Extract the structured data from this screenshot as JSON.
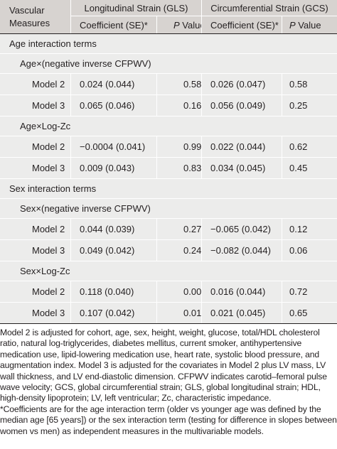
{
  "header": {
    "measures_label_line1": "Vascular",
    "measures_label_line2": "Measures",
    "gls_label": "Longitudinal Strain (GLS)",
    "gcs_label": "Circumferential Strain (GCS)",
    "coef_label": "Coefficient (SE)*",
    "p_label_italic": "P",
    "p_label_rest": " Value"
  },
  "sections": [
    {
      "title": "Age interaction terms",
      "groups": [
        {
          "label": "Age×(negative inverse CFPWV)",
          "rows": [
            {
              "model": "Model 2",
              "gls_coef": "0.024 (0.044)",
              "gls_p": "0.58",
              "gcs_coef": "0.026 (0.047)",
              "gcs_p": "0.58"
            },
            {
              "model": "Model 3",
              "gls_coef": "0.065 (0.046)",
              "gls_p": "0.16",
              "gcs_coef": "0.056 (0.049)",
              "gcs_p": "0.25"
            }
          ]
        },
        {
          "label": "Age×Log-Zc",
          "rows": [
            {
              "model": "Model 2",
              "gls_coef": "−0.0004 (0.041)",
              "gls_p": "0.99",
              "gcs_coef": "0.022 (0.044)",
              "gcs_p": "0.62"
            },
            {
              "model": "Model 3",
              "gls_coef": "0.009 (0.043)",
              "gls_p": "0.83",
              "gcs_coef": "0.034 (0.045)",
              "gcs_p": "0.45"
            }
          ]
        }
      ]
    },
    {
      "title": "Sex interaction terms",
      "groups": [
        {
          "label": "Sex×(negative inverse CFPWV)",
          "rows": [
            {
              "model": "Model 2",
              "gls_coef": "0.044 (0.039)",
              "gls_p": "0.27",
              "gcs_coef": "−0.065 (0.042)",
              "gcs_p": "0.12"
            },
            {
              "model": "Model 3",
              "gls_coef": "0.049 (0.042)",
              "gls_p": "0.24",
              "gcs_coef": "−0.082 (0.044)",
              "gcs_p": "0.06"
            }
          ]
        },
        {
          "label": "Sex×Log-Zc",
          "rows": [
            {
              "model": "Model 2",
              "gls_coef": "0.118 (0.040)",
              "gls_p": "0.004",
              "gcs_coef": "0.016 (0.044)",
              "gcs_p": "0.72"
            },
            {
              "model": "Model 3",
              "gls_coef": "0.107 (0.042)",
              "gls_p": "0.01",
              "gcs_coef": "0.021 (0.045)",
              "gcs_p": "0.65"
            }
          ]
        }
      ]
    }
  ],
  "footnotes": [
    "Model 2 is adjusted for cohort, age, sex, height, weight, glucose, total/HDL cholesterol ratio, natural log-triglycerides, diabetes mellitus, current smoker, antihypertensive medication use, lipid-lowering medication use, heart rate, systolic blood pressure, and augmentation index. Model 3 is adjusted for the covariates in Model 2 plus LV mass, LV wall thickness, and LV end-diastolic dimension. CFPWV indicates carotid–femoral pulse wave velocity; GCS, global circumferential strain; GLS, global longitudinal strain; HDL, high-density lipoprotein; LV, left ventricular; Zc, characteristic impedance.",
    "*Coefficients are for the age interaction term (older vs younger age was defined by the median age [65 years]) or the sex interaction term (testing for difference in slopes between women vs men) as independent measures in the multivariable models."
  ],
  "colors": {
    "header_bg": "#d7d3d0",
    "row_bg": "#ececeb",
    "text": "#231f20"
  }
}
